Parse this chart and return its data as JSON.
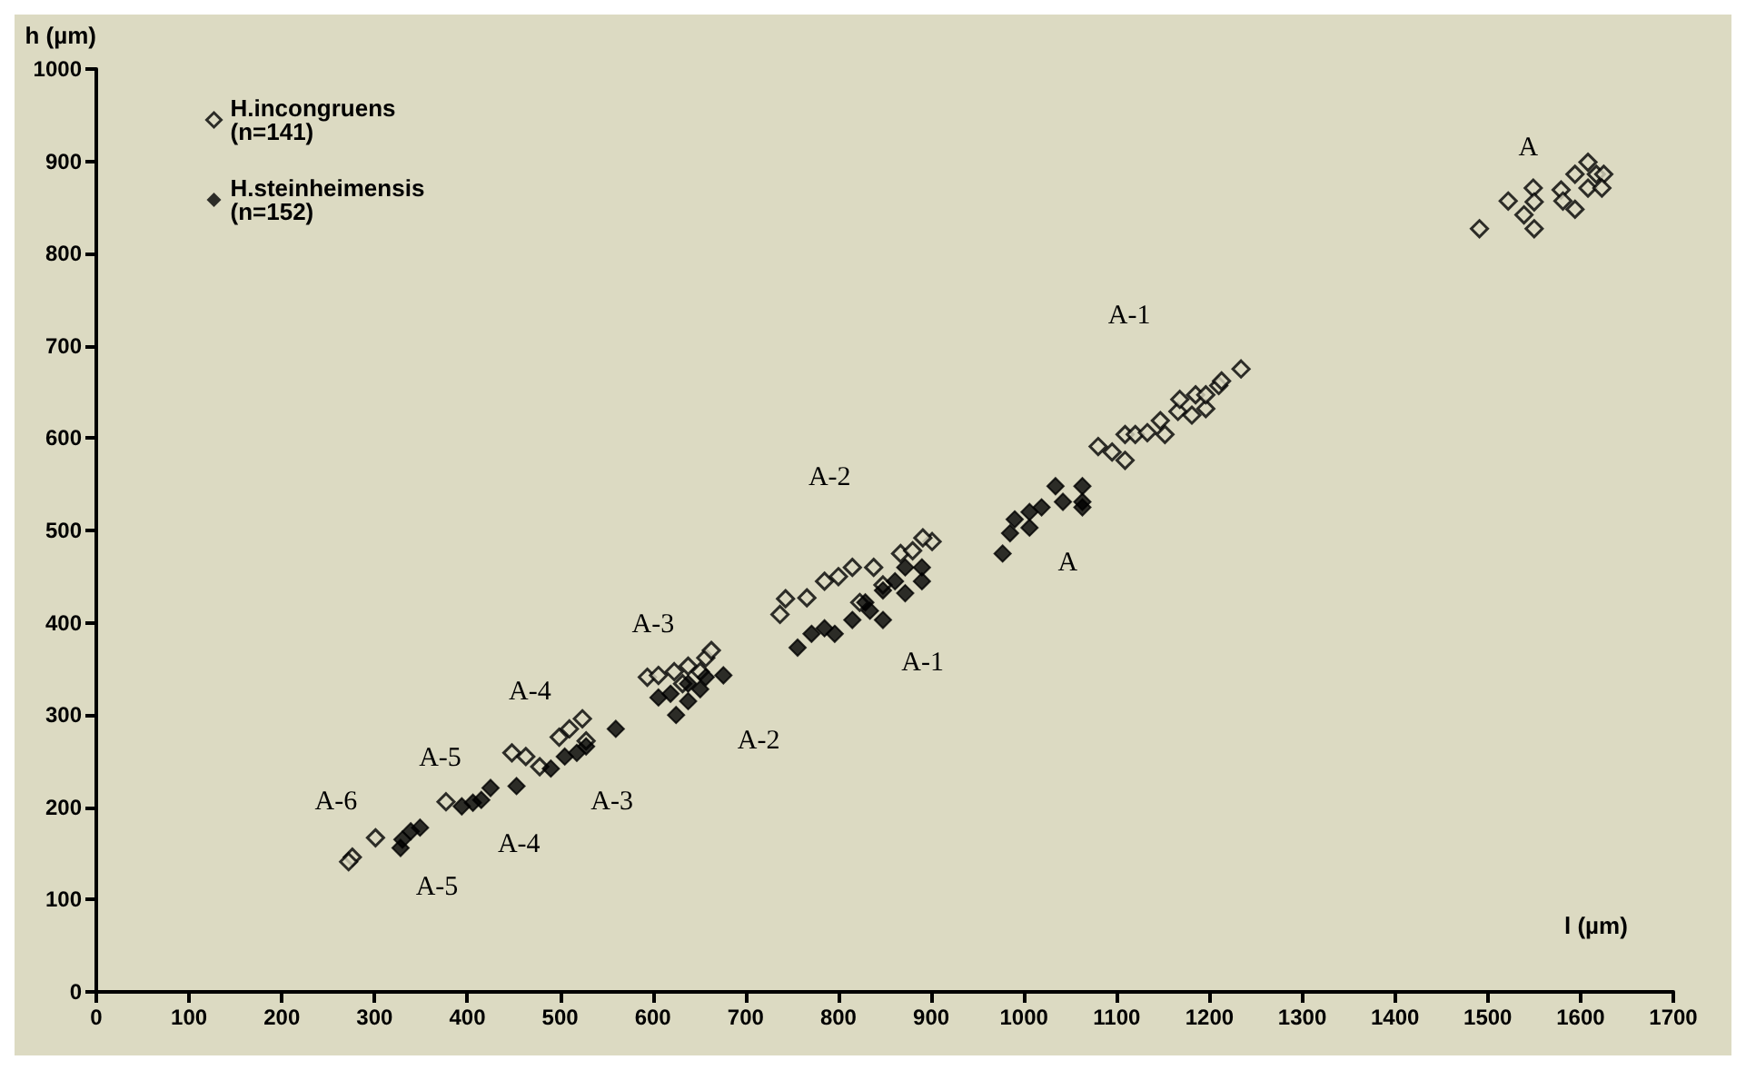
{
  "chart_data": {
    "type": "scatter",
    "xlabel": "l (µm)",
    "ylabel": "h (µm)",
    "xlim": [
      0,
      1700
    ],
    "xticks": [
      0,
      100,
      200,
      300,
      400,
      500,
      600,
      700,
      800,
      900,
      1000,
      1100,
      1200,
      1300,
      1400,
      1500,
      1600,
      1700
    ],
    "ylim": [
      0,
      1000
    ],
    "yticks": [
      0,
      100,
      200,
      300,
      400,
      500,
      600,
      700,
      800,
      900,
      1000
    ],
    "grid": false,
    "legend": "top left",
    "marker": "diamond",
    "series": [
      {
        "name": "H.incongruens\n(n=141)",
        "color": "#000000",
        "x": [
          276,
          272,
          301,
          377,
          448,
          463,
          478,
          499,
          510,
          524,
          528,
          594,
          606,
          623,
          638,
          657,
          663,
          651,
          632,
          737,
          743,
          766,
          785,
          800,
          815,
          838,
          867,
          880,
          901,
          891,
          848,
          823,
          1080,
          1095,
          1109,
          1109,
          1120,
          1133,
          1147,
          1152,
          1166,
          1168,
          1181,
          1185,
          1196,
          1196,
          1210,
          1213,
          1234,
          1491,
          1522,
          1539,
          1550,
          1549,
          1550,
          1579,
          1581,
          1594,
          1594,
          1608,
          1608,
          1617,
          1625,
          1623
        ],
        "values": [
          146,
          141,
          167,
          206,
          259,
          255,
          244,
          276,
          285,
          296,
          272,
          341,
          343,
          347,
          353,
          362,
          370,
          347,
          334,
          409,
          426,
          427,
          445,
          450,
          460,
          460,
          475,
          478,
          488,
          492,
          441,
          422,
          591,
          585,
          576,
          604,
          604,
          606,
          619,
          604,
          629,
          642,
          625,
          647,
          632,
          647,
          657,
          662,
          675,
          827,
          857,
          842,
          827,
          871,
          856,
          869,
          857,
          848,
          886,
          899,
          871,
          886,
          886,
          871
        ]
      },
      {
        "name": "H.steinheimensis\n(n=152)",
        "color": "#000000",
        "x": [
          330,
          339,
          349,
          328,
          394,
          406,
          415,
          425,
          453,
          490,
          505,
          518,
          528,
          560,
          606,
          619,
          625,
          638,
          651,
          663,
          676,
          638,
          657,
          756,
          771,
          785,
          796,
          815,
          829,
          848,
          861,
          872,
          890,
          890,
          848,
          834,
          872,
          977,
          985,
          990,
          1006,
          1006,
          1019,
          1034,
          1042,
          1063,
          1063,
          1063
        ],
        "values": [
          165,
          174,
          178,
          156,
          201,
          205,
          208,
          221,
          223,
          242,
          255,
          259,
          266,
          285,
          319,
          323,
          300,
          315,
          328,
          null,
          343,
          334,
          341,
          373,
          388,
          394,
          388,
          403,
          422,
          435,
          445,
          460,
          460,
          445,
          403,
          413,
          432,
          475,
          497,
          512,
          503,
          520,
          525,
          548,
          531,
          548,
          531,
          525
        ]
      }
    ],
    "annotations": [
      "A",
      "A-1",
      "A-2",
      "A-3",
      "A-4",
      "A-5",
      "A-6",
      "A",
      "A-1",
      "A-2",
      "A-3",
      "A-4",
      "A-5"
    ]
  }
}
